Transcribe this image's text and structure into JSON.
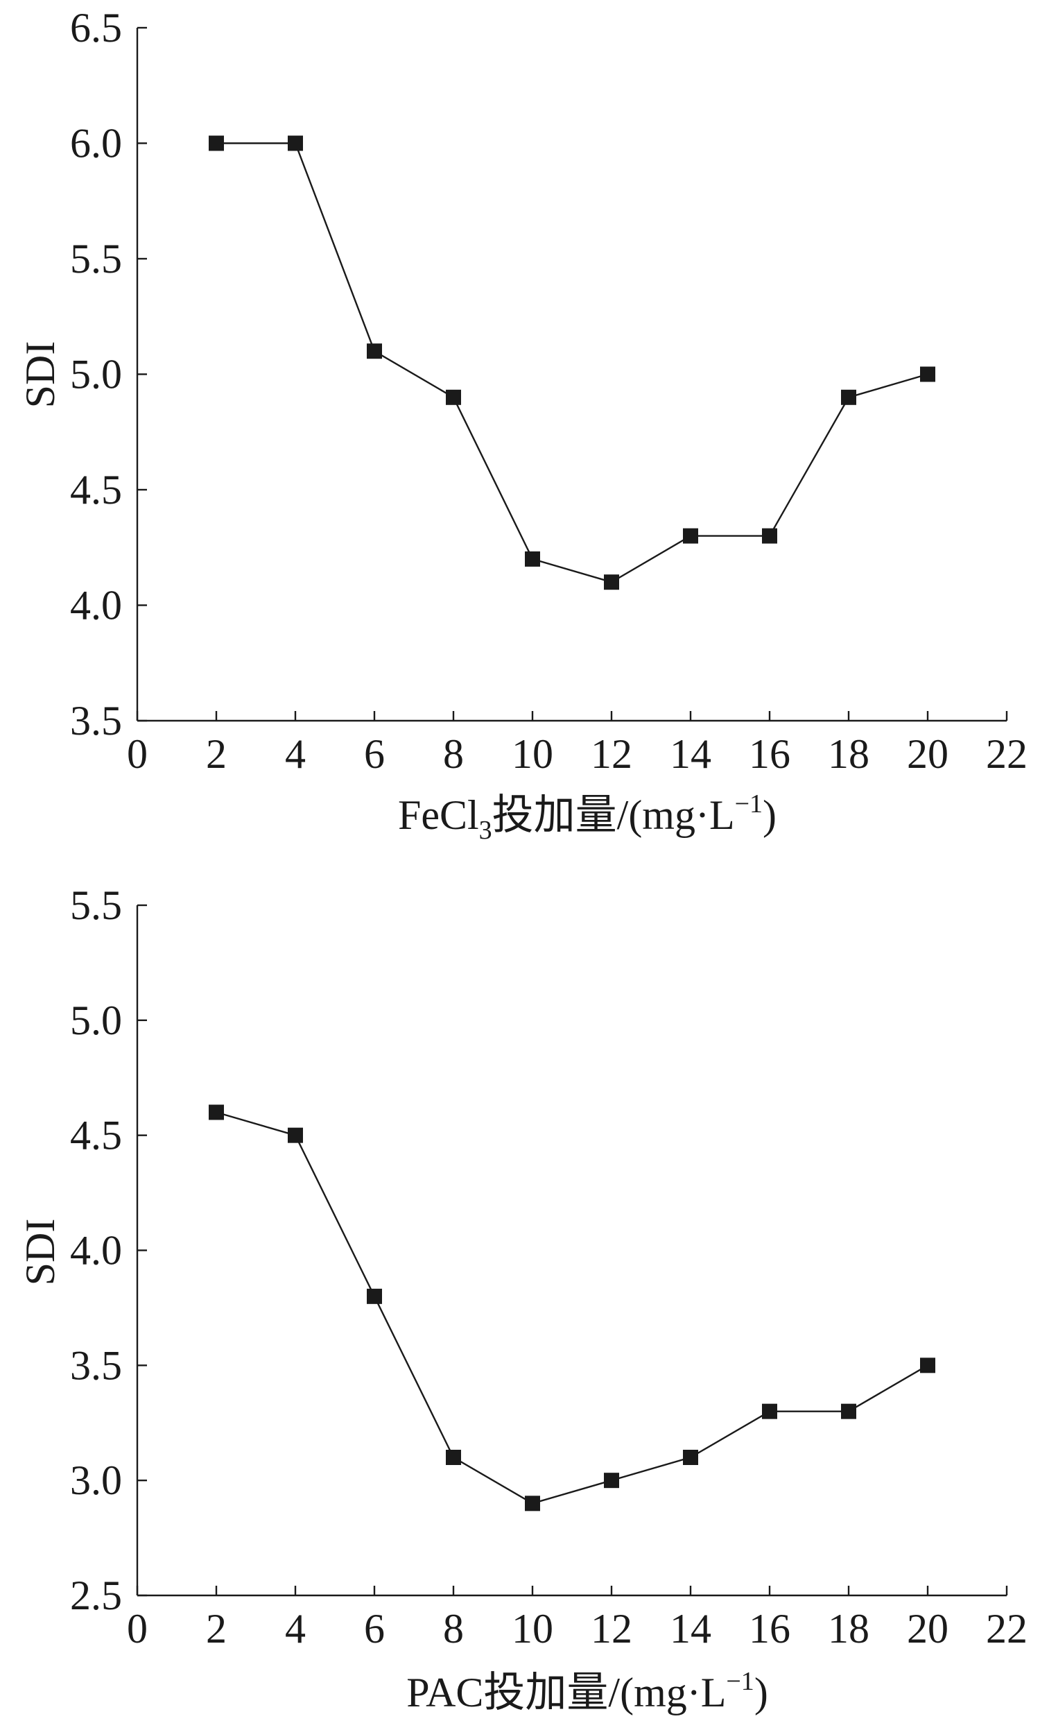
{
  "chart_data": [
    {
      "type": "line",
      "xlabel": {
        "prefix": "FeCl",
        "sub": "3",
        "main": "投加量/(mg·L",
        "sup": "−1",
        "suffix": ")"
      },
      "ylabel": "SDI",
      "xlim": [
        0,
        22
      ],
      "ylim": [
        3.5,
        6.5
      ],
      "xticks": [
        "0",
        "2",
        "4",
        "6",
        "8",
        "10",
        "12",
        "14",
        "16",
        "18",
        "20",
        "22"
      ],
      "yticks": [
        "3.5",
        "4.0",
        "4.5",
        "5.0",
        "5.5",
        "6.0",
        "6.5"
      ],
      "grid": false,
      "marker": "square",
      "color": "#1a1a1a",
      "x": [
        2,
        4,
        6,
        8,
        10,
        12,
        14,
        16,
        18,
        20
      ],
      "y": [
        6.0,
        6.0,
        5.1,
        4.9,
        4.2,
        4.1,
        4.3,
        4.3,
        4.9,
        5.0
      ]
    },
    {
      "type": "line",
      "xlabel": {
        "prefix": "PAC",
        "sub": "",
        "main": "投加量/(mg·L",
        "sup": "−1",
        "suffix": ")"
      },
      "ylabel": "SDI",
      "xlim": [
        0,
        22
      ],
      "ylim": [
        2.5,
        5.5
      ],
      "xticks": [
        "0",
        "2",
        "4",
        "6",
        "8",
        "10",
        "12",
        "14",
        "16",
        "18",
        "20",
        "22"
      ],
      "yticks": [
        "2.5",
        "3.0",
        "3.5",
        "4.0",
        "4.5",
        "5.0",
        "5.5"
      ],
      "grid": false,
      "marker": "square",
      "color": "#1a1a1a",
      "x": [
        2,
        4,
        6,
        8,
        10,
        12,
        14,
        16,
        18,
        20
      ],
      "y": [
        4.6,
        4.5,
        3.8,
        3.1,
        2.9,
        3.0,
        3.1,
        3.3,
        3.3,
        3.5
      ]
    }
  ]
}
